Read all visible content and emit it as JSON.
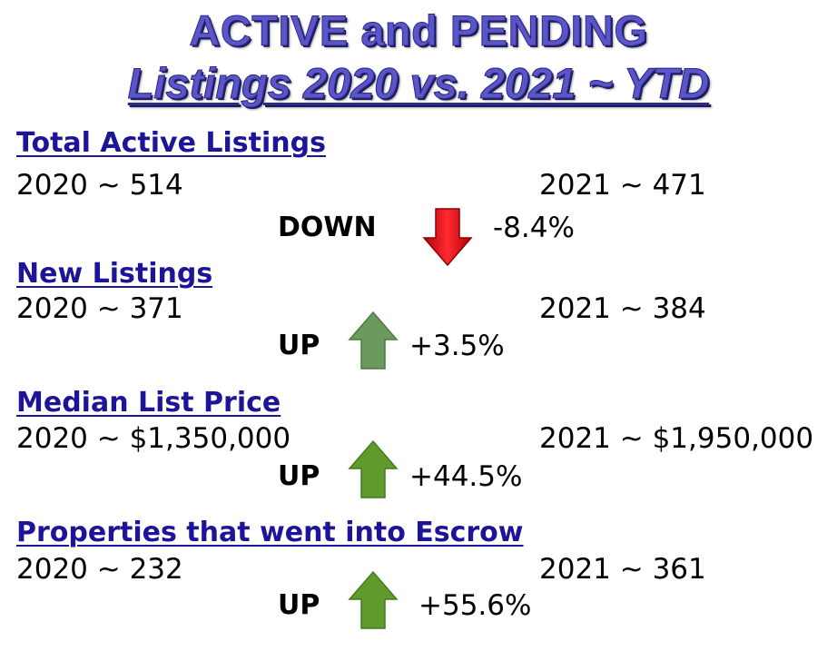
{
  "title": {
    "line1": "ACTIVE and PENDING",
    "line2": "Listings 2020 vs. 2021 ~ YTD"
  },
  "sections": [
    {
      "heading": "Total Active Listings",
      "left": "2020 ~ 514",
      "right": "2021 ~ 471",
      "direction": "DOWN",
      "change": "-8.4%",
      "arrow": "down-arrow-icon",
      "arrow_color": "#e8131a"
    },
    {
      "heading": "New Listings",
      "left": "2020 ~ 371",
      "right": "2021 ~ 384",
      "direction": "UP",
      "change": "+3.5%",
      "arrow": "up-arrow-icon",
      "arrow_color": "#6a9a5c"
    },
    {
      "heading": "Median List Price",
      "left": "2020 ~ $1,350,000",
      "right": "2021 ~ $1,950,000",
      "direction": "UP",
      "change": "+44.5%",
      "arrow": "up-arrow-icon",
      "arrow_color": "#5f9a2c"
    },
    {
      "heading": "Properties that went into Escrow",
      "left": "2020 ~ 232",
      "right": "2021 ~ 361",
      "direction": "UP",
      "change": "+55.6%",
      "arrow": "up-arrow-icon",
      "arrow_color": "#5f9a2c"
    }
  ]
}
